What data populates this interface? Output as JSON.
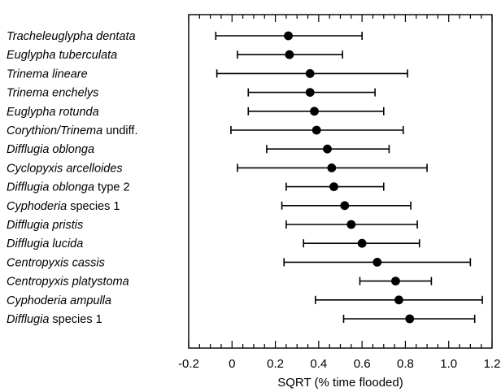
{
  "chart_data": {
    "type": "scatter",
    "orientation": "horizontal-error-bars",
    "xlabel": "SQRT (% time flooded)",
    "xlim": [
      -0.2,
      1.2
    ],
    "xticks": [
      "-0.2",
      "0",
      "0.2",
      "0.4",
      "0.6",
      "0.8",
      "1.0",
      "1.2"
    ],
    "xtick_values": [
      -0.2,
      0,
      0.2,
      0.4,
      0.6,
      0.8,
      1.0,
      1.2
    ],
    "grid": false,
    "categories": [
      {
        "parts": [
          {
            "t": "Tracheleuglypha dentata",
            "i": true
          }
        ]
      },
      {
        "parts": [
          {
            "t": "Euglypha tuberculata",
            "i": true
          }
        ]
      },
      {
        "parts": [
          {
            "t": "Trinema lineare",
            "i": true
          }
        ]
      },
      {
        "parts": [
          {
            "t": "Trinema enchelys",
            "i": true
          }
        ]
      },
      {
        "parts": [
          {
            "t": "Euglypha rotunda",
            "i": true
          }
        ]
      },
      {
        "parts": [
          {
            "t": "Corythion/Trinema",
            "i": true
          },
          {
            "t": " undiff.",
            "i": false
          }
        ]
      },
      {
        "parts": [
          {
            "t": "Difflugia oblonga",
            "i": true
          }
        ]
      },
      {
        "parts": [
          {
            "t": "Cyclopyxis arcelloides",
            "i": true
          }
        ]
      },
      {
        "parts": [
          {
            "t": "Difflugia oblonga",
            "i": true
          },
          {
            "t": " type 2",
            "i": false
          }
        ]
      },
      {
        "parts": [
          {
            "t": "Cyphoderia",
            "i": true
          },
          {
            "t": " species 1",
            "i": false
          }
        ]
      },
      {
        "parts": [
          {
            "t": "Difflugia pristis",
            "i": true
          }
        ]
      },
      {
        "parts": [
          {
            "t": "Difflugia lucida",
            "i": true
          }
        ]
      },
      {
        "parts": [
          {
            "t": "Centropyxis cassis",
            "i": true
          }
        ]
      },
      {
        "parts": [
          {
            "t": "Centropyxis platystoma",
            "i": true
          }
        ]
      },
      {
        "parts": [
          {
            "t": "Cyphoderia ampulla",
            "i": true
          }
        ]
      },
      {
        "parts": [
          {
            "t": "Difflugia",
            "i": true
          },
          {
            "t": " species 1",
            "i": false
          }
        ]
      }
    ],
    "values": [
      0.26,
      0.265,
      0.36,
      0.36,
      0.38,
      0.39,
      0.44,
      0.46,
      0.47,
      0.52,
      0.55,
      0.6,
      0.67,
      0.755,
      0.77,
      0.82
    ],
    "lower": [
      -0.075,
      0.025,
      -0.07,
      0.075,
      0.075,
      -0.005,
      0.16,
      0.025,
      0.25,
      0.23,
      0.25,
      0.33,
      0.24,
      0.59,
      0.385,
      0.515
    ],
    "upper": [
      0.6,
      0.51,
      0.81,
      0.66,
      0.7,
      0.79,
      0.725,
      0.9,
      0.7,
      0.825,
      0.855,
      0.865,
      1.1,
      0.92,
      1.155,
      1.12
    ]
  }
}
